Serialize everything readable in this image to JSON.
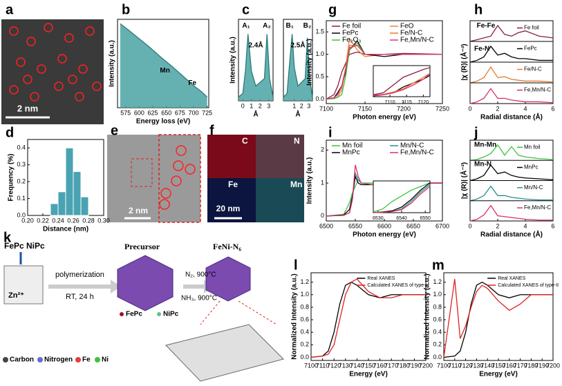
{
  "figure": {
    "panel_letters": [
      "a",
      "b",
      "c",
      "d",
      "e",
      "f",
      "g",
      "h",
      "i",
      "j",
      "k",
      "l",
      "m"
    ],
    "a_scale": "2 nm",
    "e_scale": "2 nm",
    "f_maps": [
      "C",
      "N",
      "Fe",
      "Mn"
    ],
    "f_scale": "20 nm",
    "k": {
      "reactants": [
        "FePc",
        "NiPc"
      ],
      "template": "Zn²⁺",
      "step1": [
        "polymerization",
        "RT, 24 h"
      ],
      "precursor": "Precursor",
      "step2": [
        "N₂, 900°C",
        "NH₃, 900°C"
      ],
      "product": "FeNi-N₆",
      "dots": [
        "FePc",
        "NiPc"
      ],
      "atoms": [
        "Carbon",
        "Nitrogen",
        "Fe",
        "Ni"
      ]
    }
  },
  "chart_data": [
    {
      "type": "area",
      "xlabel": "Energy loss (eV)",
      "ylabel": "Intensity (a.u.)",
      "color": "#4aa3a3",
      "x": [
        565,
        580,
        600,
        620,
        640,
        660,
        680,
        700,
        715,
        725
      ],
      "values": [
        0.95,
        0.88,
        0.78,
        0.68,
        0.57,
        0.47,
        0.36,
        0.25,
        0.18,
        0.12
      ],
      "xlim": [
        560,
        728
      ],
      "ylim": [
        0,
        1
      ],
      "xticks": [
        575,
        600,
        625,
        650,
        675,
        700,
        725
      ],
      "annotations": [
        "Mn",
        "Fe"
      ]
    },
    {
      "type": "area",
      "xlabel": "Å",
      "ylabel": "Intensity (a.u.)",
      "color": "#4aa3a3",
      "x": [
        -0.5,
        0,
        0.3,
        0.6,
        1,
        1.5,
        2,
        2.5,
        2.8,
        3.1,
        3.5
      ],
      "values": [
        0.05,
        0.1,
        0.4,
        0.9,
        0.4,
        0.2,
        0.25,
        0.3,
        0.9,
        0.3,
        0.05
      ],
      "xlim": [
        -0.5,
        3.5
      ],
      "ylim": [
        0,
        1.1
      ],
      "xticks": [
        0,
        1,
        2,
        3
      ],
      "annotations": [
        "A₁",
        "A₂",
        "2.4Å"
      ]
    },
    {
      "type": "area",
      "xlabel": "Å",
      "color": "#4aa3a3",
      "x": [
        -0.5,
        0,
        0.3,
        0.7,
        1,
        1.5,
        2,
        2.5,
        2.8,
        3.1,
        3.5
      ],
      "values": [
        0.05,
        0.1,
        0.45,
        0.9,
        0.45,
        0.2,
        0.25,
        0.3,
        0.85,
        0.3,
        0.05
      ],
      "xlim": [
        -0.5,
        3.5
      ],
      "ylim": [
        0,
        1.1
      ],
      "xticks": [
        1,
        2,
        3
      ],
      "annotations": [
        "B₁",
        "B₂",
        "2.5Å"
      ]
    },
    {
      "type": "histogram",
      "xlabel": "Distance (nm)",
      "ylabel": "Frequency (%)",
      "color": "#4aa3b3",
      "bins": [
        0.23,
        0.24,
        0.25,
        0.26,
        0.27,
        0.28
      ],
      "counts": [
        0.07,
        0.14,
        0.4,
        0.26,
        0.11
      ],
      "xlim": [
        0.2,
        0.3
      ],
      "ylim": [
        0,
        0.45
      ],
      "xticks": [
        {
          "value": 0.2,
          "label": "0.20"
        },
        {
          "value": 0.22,
          "label": "0.22"
        },
        0.24,
        0.26,
        0.28,
        {
          "value": 0.3,
          "label": "0.30"
        }
      ],
      "yticks": [
        {
          "value": 0,
          "label": "0.0"
        },
        0.1,
        0.2,
        0.3,
        0.4
      ]
    },
    {
      "type": "line",
      "xlabel": "Photon energy (eV)",
      "ylabel": "Intensity (a.u.)",
      "x": [
        7100,
        7110,
        7115,
        7120,
        7125,
        7130,
        7140,
        7150,
        7175,
        7200,
        7250
      ],
      "series": [
        {
          "name": "Fe foil",
          "color": "#8b1a3a",
          "values": [
            0,
            0.1,
            0.3,
            0.6,
            0.8,
            1.0,
            1.05,
            1.0,
            1.0,
            1.02,
            1.0
          ]
        },
        {
          "name": "FeO",
          "color": "#f07f3c",
          "values": [
            0,
            0.02,
            0.05,
            0.2,
            0.7,
            1.35,
            1.1,
            0.95,
            1.0,
            1.0,
            1.0
          ]
        },
        {
          "name": "FePc",
          "color": "#000000",
          "values": [
            0,
            0.03,
            0.15,
            0.3,
            0.6,
            1.1,
            1.3,
            1.0,
            0.95,
            1.0,
            1.0
          ]
        },
        {
          "name": "Fe/N-C",
          "color": "#e8782a",
          "values": [
            0,
            0.03,
            0.1,
            0.3,
            0.7,
            1.2,
            1.2,
            1.0,
            1.0,
            1.0,
            1.0
          ]
        },
        {
          "name": "Fe₂O₃",
          "color": "#3cc23c",
          "values": [
            0,
            0.01,
            0.04,
            0.1,
            0.5,
            1.1,
            1.25,
            1.0,
            1.0,
            1.0,
            1.0
          ]
        },
        {
          "name": "Fe,Mn/N-C",
          "color": "#e0307a",
          "values": [
            0,
            0.03,
            0.1,
            0.28,
            0.65,
            1.15,
            1.2,
            1.0,
            1.0,
            1.0,
            1.0
          ]
        }
      ],
      "xlim": [
        7100,
        7250
      ],
      "ylim": [
        -0.1,
        1.75
      ],
      "xticks": [
        7100,
        7150,
        7200,
        7250
      ],
      "yticks": [
        {
          "value": 0,
          "label": "0.0"
        },
        0.5,
        {
          "value": 1,
          "label": "1.0"
        },
        1.5
      ]
    },
    {
      "type": "line",
      "x": [
        7105,
        7108,
        7111,
        7114,
        7117,
        7120,
        7122
      ],
      "series": [
        {
          "color": "#8b1a3a",
          "values": [
            0.05,
            0.1,
            0.3,
            0.5,
            0.6,
            0.7,
            0.75
          ]
        },
        {
          "color": "#000000",
          "values": [
            0.02,
            0.05,
            0.1,
            0.25,
            0.35,
            0.45,
            0.55
          ]
        },
        {
          "color": "#e8782a",
          "values": [
            0.03,
            0.06,
            0.12,
            0.2,
            0.35,
            0.5,
            0.6
          ]
        },
        {
          "color": "#e0307a",
          "values": [
            0.03,
            0.05,
            0.1,
            0.18,
            0.3,
            0.45,
            0.6
          ]
        }
      ],
      "xlim": [
        7105,
        7122
      ],
      "ylim": [
        0,
        0.8
      ],
      "xticks": [
        7110,
        7115,
        7120
      ]
    },
    {
      "type": "strips",
      "xlabel": "Radial distance (Å)",
      "ylabel": "|χ (R)| (Å⁻³)",
      "x": [
        0,
        0.5,
        1,
        1.5,
        2,
        2.5,
        3,
        3.5,
        4,
        5,
        6
      ],
      "series": [
        {
          "name": "Fe foil",
          "color": "#8b1a3a",
          "values": [
            0,
            0.1,
            0.2,
            0.3,
            0.9,
            0.4,
            0.3,
            0.5,
            0.6,
            0.3,
            0.2
          ]
        },
        {
          "name": "FePc",
          "color": "#000000",
          "values": [
            0,
            0.1,
            0.3,
            0.9,
            0.4,
            0.5,
            0.3,
            0.2,
            0.2,
            0.1,
            0.1
          ]
        },
        {
          "name": "Fe/N-C",
          "color": "#e8782a",
          "values": [
            0,
            0.1,
            0.3,
            0.9,
            0.3,
            0.35,
            0.2,
            0.15,
            0.1,
            0.1,
            0.05
          ]
        },
        {
          "name": "Fe,Mn/N-C",
          "color": "#d6306a",
          "values": [
            0,
            0.1,
            0.3,
            0.85,
            0.3,
            0.3,
            0.2,
            0.15,
            0.1,
            0.1,
            0.05
          ]
        }
      ],
      "xlim": [
        0,
        6
      ],
      "ylim": [
        0,
        1
      ],
      "xticks": [
        0,
        2,
        4,
        6
      ],
      "annotations": [
        "Fe-Fe",
        "Fe-N"
      ]
    },
    {
      "type": "line",
      "xlabel": "Photon energy (eV)",
      "ylabel": "Intensity (a.u.)",
      "x": [
        6500,
        6530,
        6540,
        6545,
        6550,
        6555,
        6560,
        6580,
        6620,
        6700
      ],
      "series": [
        {
          "name": "Mn foil",
          "color": "#3cc23c",
          "values": [
            0,
            0.05,
            0.4,
            0.7,
            0.9,
            1.1,
            1.0,
            1.0,
            1.0,
            1.0
          ]
        },
        {
          "name": "Mn/N-C",
          "color": "#2a8c8c",
          "values": [
            0,
            0.02,
            0.1,
            0.5,
            1.3,
            1.1,
            1.0,
            0.95,
            1.0,
            1.0
          ]
        },
        {
          "name": "MnPc",
          "color": "#000000",
          "values": [
            0,
            0.03,
            0.2,
            0.6,
            1.2,
            1.0,
            0.95,
            0.95,
            1.0,
            1.0
          ]
        },
        {
          "name": "Fe,Mn/N-C",
          "color": "#d6306a",
          "values": [
            0,
            0.02,
            0.1,
            0.5,
            1.55,
            1.2,
            1.0,
            0.95,
            1.0,
            1.0
          ]
        }
      ],
      "xlim": [
        6500,
        6700
      ],
      "ylim": [
        -0.15,
        2.3
      ],
      "xticks": [
        6500,
        6550,
        6600,
        6650,
        6700
      ],
      "yticks": [
        0,
        1,
        2
      ]
    },
    {
      "type": "line",
      "x": [
        6528,
        6532,
        6536,
        6540,
        6544,
        6548,
        6552
      ],
      "series": [
        {
          "color": "#3cc23c",
          "values": [
            0.02,
            0.1,
            0.3,
            0.45,
            0.6,
            0.7,
            0.8
          ]
        },
        {
          "color": "#000000",
          "values": [
            0,
            0.02,
            0.05,
            0.15,
            0.35,
            0.6,
            0.8
          ]
        },
        {
          "color": "#2a8c8c",
          "values": [
            0,
            0.01,
            0.03,
            0.1,
            0.3,
            0.55,
            0.75
          ]
        },
        {
          "color": "#d6306a",
          "values": [
            0,
            0.01,
            0.03,
            0.08,
            0.25,
            0.5,
            0.7
          ]
        }
      ],
      "xlim": [
        6528,
        6552
      ],
      "ylim": [
        0,
        0.85
      ],
      "xticks": [
        6530,
        6540,
        6550
      ]
    },
    {
      "type": "strips",
      "xlabel": "Radial distance (Å)",
      "ylabel": "|χ (R)| (Å⁻³)",
      "x": [
        0,
        0.5,
        1,
        1.5,
        2,
        2.5,
        3,
        3.5,
        4,
        5,
        6
      ],
      "series": [
        {
          "name": "Mn foil",
          "color": "#3cc23c",
          "values": [
            0,
            0.05,
            0.2,
            0.4,
            0.9,
            0.3,
            0.8,
            0.3,
            0.2,
            0.1,
            0.05
          ]
        },
        {
          "name": "MnPc",
          "color": "#000000",
          "values": [
            0,
            0.1,
            0.3,
            0.9,
            0.4,
            0.5,
            0.3,
            0.2,
            0.15,
            0.1,
            0.05
          ]
        },
        {
          "name": "Mn/N-C",
          "color": "#2a8c8c",
          "values": [
            0,
            0.1,
            0.3,
            0.85,
            0.3,
            0.3,
            0.2,
            0.15,
            0.1,
            0.05,
            0.05
          ]
        },
        {
          "name": "Fe,Mn/N-C",
          "color": "#d6306a",
          "values": [
            0,
            0.1,
            0.35,
            0.9,
            0.3,
            0.25,
            0.2,
            0.15,
            0.1,
            0.05,
            0.05
          ]
        }
      ],
      "xlim": [
        0,
        6
      ],
      "ylim": [
        0,
        1
      ],
      "xticks": [
        0,
        2,
        4,
        6
      ],
      "annotations": [
        "Mn-Mn",
        "Mn-N"
      ]
    },
    {
      "type": "line",
      "xlabel": "Energy (eV)",
      "ylabel": "Normalized Intensity (a.u.)",
      "x": [
        7100,
        7110,
        7115,
        7120,
        7125,
        7130,
        7135,
        7140,
        7150,
        7160,
        7170,
        7180,
        7200
      ],
      "series": [
        {
          "name": "Real XANES",
          "color": "#000000",
          "values": [
            0,
            0.02,
            0.1,
            0.4,
            0.85,
            1.15,
            1.2,
            1.15,
            1.0,
            0.95,
            1.0,
            1.0,
            1.0
          ]
        },
        {
          "name": "Calculated XANES of type-I",
          "color": "#e02020",
          "values": [
            0,
            0.02,
            0.05,
            0.2,
            0.6,
            1.0,
            1.2,
            1.25,
            1.05,
            0.95,
            0.95,
            1.0,
            1.0
          ]
        }
      ],
      "xlim": [
        7100,
        7200
      ],
      "ylim": [
        -0.05,
        1.35
      ],
      "xticks": [
        7100,
        7110,
        7120,
        7130,
        7140,
        7150,
        7160,
        7170,
        7180,
        7190,
        7200
      ],
      "yticks": [
        {
          "value": 0,
          "label": "0.0"
        },
        0.2,
        0.4,
        0.6,
        0.8,
        {
          "value": 1,
          "label": "1.0"
        },
        1.2
      ]
    },
    {
      "type": "line",
      "xlabel": "Energy (eV)",
      "ylabel": "Normalized Intensity (a.u.)",
      "x": [
        7100,
        7110,
        7115,
        7120,
        7125,
        7130,
        7135,
        7140,
        7150,
        7160,
        7170,
        7180,
        7200
      ],
      "series": [
        {
          "name": "Real XANES",
          "color": "#000000",
          "values": [
            0,
            0.02,
            0.1,
            0.4,
            0.85,
            1.15,
            1.2,
            1.15,
            1.0,
            0.95,
            1.0,
            1.0,
            1.0
          ]
        },
        {
          "name": "Calculated XANES of type-II",
          "color": "#e02020",
          "values": [
            0,
            1.25,
            0.3,
            0.5,
            0.8,
            1.05,
            1.15,
            1.1,
            0.9,
            0.75,
            0.85,
            1.0,
            1.0
          ]
        }
      ],
      "xlim": [
        7100,
        7200
      ],
      "ylim": [
        -0.05,
        1.35
      ],
      "xticks": [
        7100,
        7110,
        7120,
        7130,
        7140,
        7150,
        7160,
        7170,
        7180,
        7190,
        7200
      ],
      "yticks": [
        {
          "value": 0,
          "label": "0.0"
        },
        0.2,
        0.4,
        0.6,
        0.8,
        {
          "value": 1,
          "label": "1.0"
        },
        1.2
      ]
    }
  ]
}
